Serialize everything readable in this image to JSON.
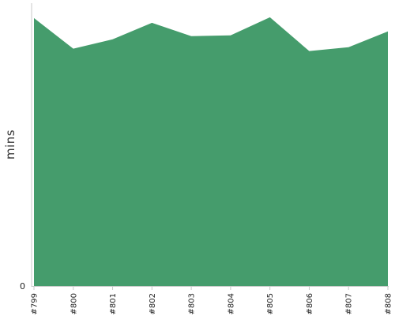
{
  "chart_data": {
    "type": "area",
    "categories": [
      "#799",
      "#800",
      "#801",
      "#802",
      "#803",
      "#804",
      "#805",
      "#806",
      "#807",
      "#808"
    ],
    "values": [
      34.1,
      30.2,
      31.4,
      33.5,
      31.8,
      31.9,
      34.2,
      29.9,
      30.4,
      32.4
    ],
    "ylabel": "mins",
    "y_tick_labels": [
      "0"
    ],
    "ylim": [
      0,
      36
    ],
    "grid": false,
    "colors": {
      "fill": "#459c6c",
      "axis": "#c8c8c8"
    }
  }
}
